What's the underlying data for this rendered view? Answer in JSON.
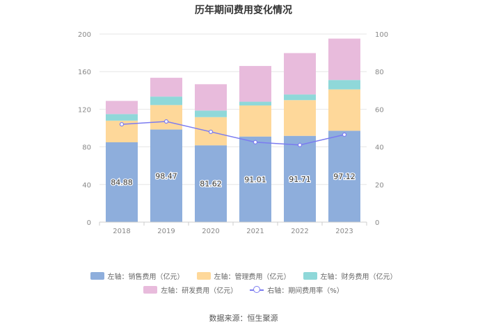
{
  "title": "历年期间费用变化情况",
  "source": "数据来源：恒生聚源",
  "chart_data": {
    "type": "bar",
    "stacked": true,
    "categories": [
      "2018",
      "2019",
      "2020",
      "2021",
      "2022",
      "2023"
    ],
    "series": [
      {
        "name": "左轴：销售费用（亿元）",
        "axis": "left",
        "color": "#8eaedc",
        "values": [
          84.88,
          98.47,
          81.62,
          91.01,
          91.71,
          97.12
        ],
        "show_labels": true
      },
      {
        "name": "左轴：管理费用（亿元）",
        "axis": "left",
        "color": "#fed89a",
        "values": [
          23,
          26,
          30,
          33,
          38,
          44
        ]
      },
      {
        "name": "左轴：财务费用（亿元）",
        "axis": "left",
        "color": "#8fd8d9",
        "values": [
          7,
          9,
          7,
          4,
          6,
          10
        ]
      },
      {
        "name": "左轴：研发费用（亿元）",
        "axis": "left",
        "color": "#e8bbdc",
        "values": [
          14,
          20,
          28,
          38,
          44,
          44
        ]
      }
    ],
    "line_series": [
      {
        "name": "右轴：期间费用率（%）",
        "axis": "right",
        "color": "#7b7bf0",
        "values": [
          52,
          53.5,
          48,
          42.5,
          41,
          46.5
        ]
      }
    ],
    "left_axis": {
      "min": 0,
      "max": 200,
      "ticks": [
        0,
        40,
        80,
        120,
        160,
        200
      ]
    },
    "right_axis": {
      "min": 0,
      "max": 100,
      "ticks": [
        0,
        20,
        40,
        60,
        80,
        100
      ]
    },
    "grid": true,
    "legend_position": "bottom"
  }
}
